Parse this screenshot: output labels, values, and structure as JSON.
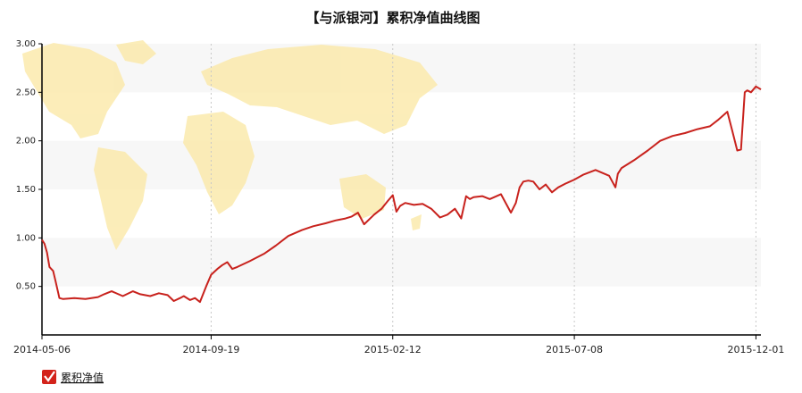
{
  "chart_data": {
    "type": "line",
    "title": "【与派银河】累积净值曲线图",
    "xlabel": "",
    "ylabel": "",
    "ylim": [
      0.0,
      3.0
    ],
    "y_ticks": [
      "0.50",
      "1.00",
      "1.50",
      "2.00",
      "2.50",
      "3.00"
    ],
    "y_tick_values": [
      0.5,
      1.0,
      1.5,
      2.0,
      2.5,
      3.0
    ],
    "x_ticks": [
      "2014-05-06",
      "2014-09-19",
      "2015-02-12",
      "2015-07-08",
      "2015-12-01"
    ],
    "x_range": [
      "2014-05-06",
      "2015-12-05"
    ],
    "grid": "alternating horizontal bands, dotted vertical lines",
    "legend_position": "bottom-left",
    "colors": {
      "line": "#c8221d",
      "band": "#f7f7f7",
      "map": "#fbe9a8"
    },
    "background": "world-map watermark",
    "series": [
      {
        "name": "累积净值",
        "x": [
          "2014-05-06",
          "2014-05-08",
          "2014-05-10",
          "2014-05-12",
          "2014-05-15",
          "2014-05-17",
          "2014-05-20",
          "2014-05-23",
          "2014-06-01",
          "2014-06-10",
          "2014-06-20",
          "2014-06-25",
          "2014-07-01",
          "2014-07-10",
          "2014-07-18",
          "2014-07-24",
          "2014-08-01",
          "2014-08-08",
          "2014-08-15",
          "2014-08-20",
          "2014-08-25",
          "2014-08-28",
          "2014-09-02",
          "2014-09-06",
          "2014-09-10",
          "2014-09-15",
          "2014-09-19",
          "2014-09-24",
          "2014-09-28",
          "2014-10-02",
          "2014-10-06",
          "2014-10-10",
          "2014-10-20",
          "2014-11-01",
          "2014-11-10",
          "2014-11-20",
          "2014-12-01",
          "2014-12-10",
          "2014-12-20",
          "2014-12-28",
          "2015-01-05",
          "2015-01-10",
          "2015-01-15",
          "2015-01-20",
          "2015-01-28",
          "2015-02-03",
          "2015-02-08",
          "2015-02-12",
          "2015-02-15",
          "2015-02-18",
          "2015-02-22",
          "2015-03-01",
          "2015-03-08",
          "2015-03-15",
          "2015-03-22",
          "2015-03-28",
          "2015-04-03",
          "2015-04-08",
          "2015-04-12",
          "2015-04-15",
          "2015-04-18",
          "2015-04-25",
          "2015-05-01",
          "2015-05-10",
          "2015-05-18",
          "2015-05-22",
          "2015-05-25",
          "2015-05-28",
          "2015-06-01",
          "2015-06-05",
          "2015-06-10",
          "2015-06-15",
          "2015-06-20",
          "2015-06-25",
          "2015-07-01",
          "2015-07-08",
          "2015-07-15",
          "2015-07-25",
          "2015-08-05",
          "2015-08-10",
          "2015-08-12",
          "2015-08-15",
          "2015-08-25",
          "2015-09-05",
          "2015-09-15",
          "2015-09-25",
          "2015-10-05",
          "2015-10-15",
          "2015-10-25",
          "2015-11-01",
          "2015-11-08",
          "2015-11-12",
          "2015-11-16",
          "2015-11-19",
          "2015-11-22",
          "2015-11-24",
          "2015-11-27",
          "2015-12-01",
          "2015-12-05"
        ],
        "values": [
          0.98,
          0.94,
          0.85,
          0.7,
          0.66,
          0.55,
          0.38,
          0.37,
          0.38,
          0.37,
          0.39,
          0.42,
          0.45,
          0.4,
          0.45,
          0.42,
          0.4,
          0.43,
          0.41,
          0.35,
          0.38,
          0.4,
          0.36,
          0.38,
          0.34,
          0.5,
          0.62,
          0.68,
          0.72,
          0.75,
          0.68,
          0.7,
          0.76,
          0.84,
          0.92,
          1.02,
          1.08,
          1.12,
          1.15,
          1.18,
          1.2,
          1.22,
          1.26,
          1.14,
          1.24,
          1.3,
          1.38,
          1.44,
          1.27,
          1.33,
          1.36,
          1.34,
          1.35,
          1.3,
          1.21,
          1.24,
          1.3,
          1.2,
          1.43,
          1.4,
          1.42,
          1.43,
          1.4,
          1.45,
          1.26,
          1.36,
          1.52,
          1.58,
          1.59,
          1.58,
          1.5,
          1.55,
          1.47,
          1.52,
          1.56,
          1.6,
          1.65,
          1.7,
          1.64,
          1.52,
          1.66,
          1.72,
          1.8,
          1.9,
          2.0,
          2.05,
          2.08,
          2.12,
          2.15,
          2.22,
          2.3,
          2.1,
          1.9,
          1.91,
          2.5,
          2.52,
          2.5,
          2.56,
          2.53
        ]
      }
    ]
  },
  "legend": {
    "label": "累积净值"
  }
}
